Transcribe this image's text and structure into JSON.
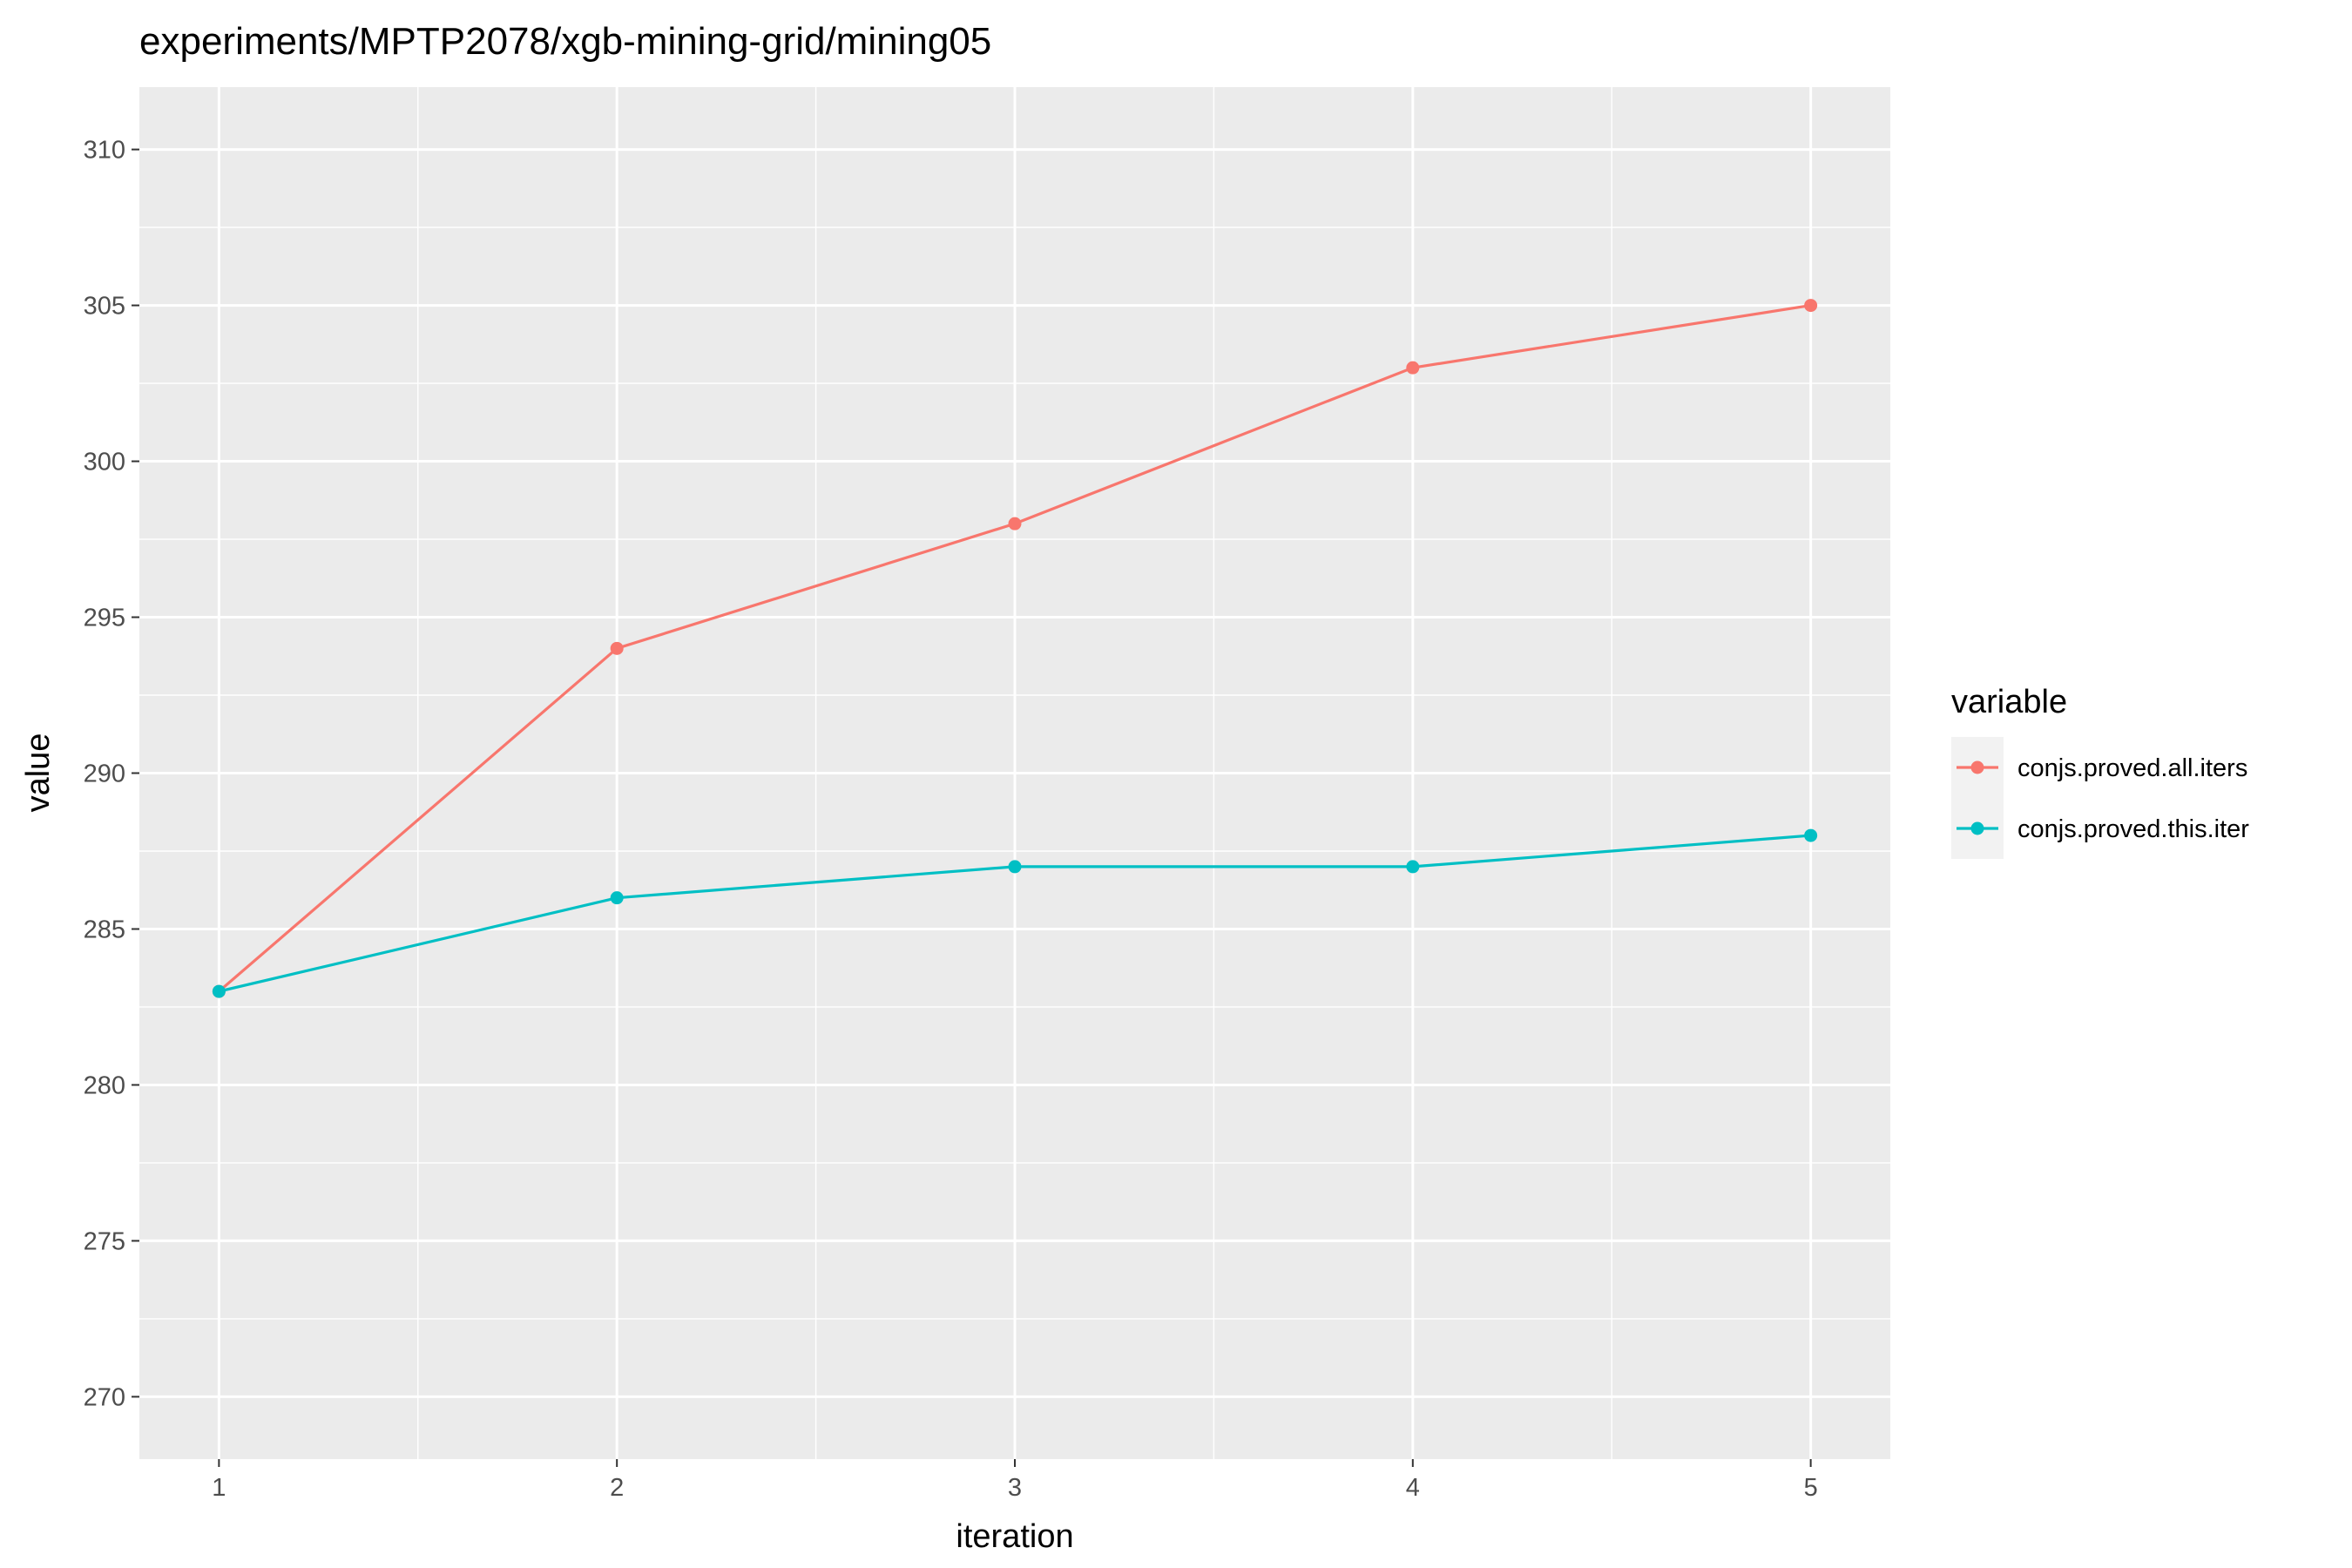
{
  "chart_data": {
    "type": "line",
    "title": "experiments/MPTP2078/xgb-mining-grid/mining05",
    "xlabel": "iteration",
    "ylabel": "value",
    "x": [
      1,
      2,
      3,
      4,
      5
    ],
    "xlim": [
      0.8,
      5.2
    ],
    "ylim": [
      268,
      312
    ],
    "x_ticks": [
      1,
      2,
      3,
      4,
      5
    ],
    "y_ticks": [
      270,
      275,
      280,
      285,
      290,
      295,
      300,
      305,
      310
    ],
    "grid": true,
    "legend": {
      "title": "variable",
      "position": "right"
    },
    "series": [
      {
        "name": "conjs.proved.all.iters",
        "color": "#F8766D",
        "values": [
          283,
          294,
          298,
          303,
          305
        ]
      },
      {
        "name": "conjs.proved.this.iter",
        "color": "#00BFC4",
        "values": [
          283,
          286,
          287,
          287,
          288
        ]
      }
    ]
  }
}
